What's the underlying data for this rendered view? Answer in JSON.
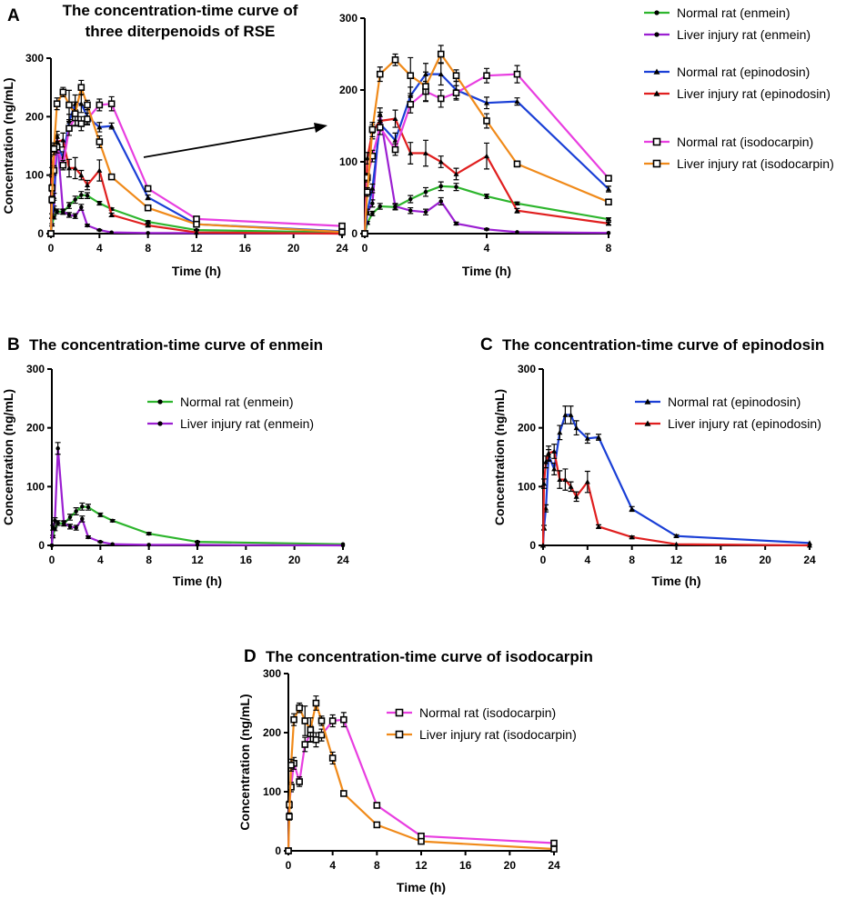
{
  "chart_data": [
    {
      "type": "line",
      "panel": "A",
      "title": "The concentration-time curve of three diterpenoids of RSE",
      "title_lines": [
        "The concentration-time curve of",
        "three diterpenoids of RSE"
      ],
      "xlabel": "Time (h)",
      "ylabel": "Concentration (ng/mL)",
      "xlim": [
        0,
        24
      ],
      "ylim": [
        0,
        300
      ],
      "xticks": [
        0,
        4,
        8,
        12,
        16,
        20,
        24
      ],
      "yticks": [
        0,
        100,
        200,
        300
      ],
      "series_ids": [
        "ne",
        "le",
        "np",
        "lp",
        "ni",
        "li"
      ]
    },
    {
      "type": "line",
      "panel": "A-inset",
      "title": "",
      "xlabel": "Time (h)",
      "ylabel": "",
      "xlim": [
        0,
        8
      ],
      "ylim": [
        0,
        300
      ],
      "xticks": [
        0,
        4,
        8
      ],
      "yticks": [
        0,
        100,
        200,
        300
      ],
      "series_ids": [
        "ne",
        "le",
        "np",
        "lp",
        "ni",
        "li"
      ]
    },
    {
      "type": "line",
      "panel": "B",
      "title": "The concentration-time curve of enmein",
      "xlabel": "Time (h)",
      "ylabel": "Concentration (ng/mL)",
      "xlim": [
        0,
        24
      ],
      "ylim": [
        0,
        300
      ],
      "xticks": [
        0,
        4,
        8,
        12,
        16,
        20,
        24
      ],
      "yticks": [
        0,
        100,
        200,
        300
      ],
      "series_ids": [
        "ne",
        "le"
      ]
    },
    {
      "type": "line",
      "panel": "C",
      "title": "The concentration-time curve of epinodosin",
      "xlabel": "Time (h)",
      "ylabel": "Concentration (ng/mL)",
      "xlim": [
        0,
        24
      ],
      "ylim": [
        0,
        300
      ],
      "xticks": [
        0,
        4,
        8,
        12,
        16,
        20,
        24
      ],
      "yticks": [
        0,
        100,
        200,
        300
      ],
      "series_ids": [
        "np",
        "lp"
      ]
    },
    {
      "type": "line",
      "panel": "D",
      "title": "The concentration-time curve of isodocarpin",
      "xlabel": "Time (h)",
      "ylabel": "Concentration (ng/mL)",
      "xlim": [
        0,
        24
      ],
      "ylim": [
        0,
        300
      ],
      "xticks": [
        0,
        4,
        8,
        12,
        16,
        20,
        24
      ],
      "yticks": [
        0,
        100,
        200,
        300
      ],
      "series_ids": [
        "ni",
        "li"
      ]
    }
  ],
  "series": {
    "ne": {
      "name": "Normal rat (enmein)",
      "color": "#2db52d",
      "marker": "dot",
      "x": [
        0,
        0.083,
        0.25,
        0.5,
        1,
        1.5,
        2,
        2.5,
        3,
        4,
        5,
        8,
        12,
        24
      ],
      "y": [
        0,
        15,
        28,
        38,
        37,
        48,
        58,
        66,
        65,
        52,
        42,
        20,
        6,
        2
      ],
      "err": [
        0,
        2,
        3,
        4,
        4,
        5,
        6,
        6,
        5,
        3,
        2,
        2,
        1,
        0
      ]
    },
    "le": {
      "name": "Liver injury rat (enmein)",
      "color": "#9b1fd1",
      "marker": "dot",
      "x": [
        0,
        0.083,
        0.25,
        0.5,
        1,
        1.5,
        2,
        2.5,
        3,
        4,
        5,
        8,
        12,
        24
      ],
      "y": [
        0,
        30,
        42,
        165,
        38,
        32,
        30,
        45,
        14,
        6,
        2,
        1,
        1,
        0
      ],
      "err": [
        0,
        4,
        5,
        10,
        4,
        4,
        4,
        5,
        2,
        1,
        0,
        0,
        0,
        0
      ]
    },
    "np": {
      "name": "Normal rat (epinodosin)",
      "color": "#1a3fd6",
      "marker": "triangle",
      "x": [
        0,
        0.083,
        0.25,
        0.5,
        1,
        1.5,
        2,
        2.5,
        3,
        4,
        5,
        8,
        12,
        24
      ],
      "y": [
        0,
        30,
        63,
        153,
        130,
        192,
        222,
        222,
        200,
        182,
        184,
        62,
        16,
        4
      ],
      "err": [
        0,
        4,
        6,
        10,
        10,
        12,
        15,
        15,
        12,
        8,
        5,
        4,
        2,
        0
      ]
    },
    "lp": {
      "name": "Liver injury rat (epinodosin)",
      "color": "#e01f1f",
      "marker": "triangle",
      "x": [
        0,
        0.083,
        0.25,
        0.5,
        1,
        1.5,
        2,
        2.5,
        3,
        4,
        5,
        8,
        12,
        24
      ],
      "y": [
        0,
        105,
        142,
        157,
        160,
        112,
        112,
        100,
        83,
        108,
        32,
        14,
        2,
        0
      ],
      "err": [
        0,
        8,
        10,
        12,
        12,
        15,
        18,
        8,
        8,
        18,
        3,
        2,
        0,
        0
      ]
    },
    "ni": {
      "name": "Normal rat (isodocarpin)",
      "color": "#e83ee0",
      "marker": "square",
      "x": [
        0,
        0.083,
        0.25,
        0.5,
        1,
        1.5,
        2,
        2.5,
        3,
        4,
        5,
        8,
        12,
        24
      ],
      "y": [
        0,
        78,
        108,
        148,
        117,
        180,
        198,
        188,
        196,
        220,
        222,
        77,
        25,
        13
      ],
      "err": [
        0,
        6,
        8,
        10,
        8,
        12,
        14,
        12,
        10,
        10,
        12,
        3,
        2,
        1
      ]
    },
    "li": {
      "name": "Liver injury rat (isodocarpin)",
      "color": "#f08a1a",
      "marker": "square",
      "x": [
        0,
        0.083,
        0.25,
        0.5,
        1,
        1.5,
        2,
        2.5,
        3,
        4,
        5,
        8,
        12,
        24
      ],
      "y": [
        0,
        58,
        145,
        222,
        242,
        220,
        205,
        250,
        220,
        157,
        97,
        44,
        16,
        3
      ],
      "err": [
        0,
        6,
        10,
        10,
        8,
        25,
        20,
        12,
        8,
        10,
        4,
        2,
        1,
        0
      ]
    }
  },
  "legends": {
    "A": [
      "ne",
      "le",
      "np",
      "lp",
      "ni",
      "li"
    ],
    "B": [
      "ne",
      "le"
    ],
    "C": [
      "np",
      "lp"
    ],
    "D": [
      "ni",
      "li"
    ]
  },
  "panel_letters": [
    "A",
    "B",
    "C",
    "D"
  ]
}
